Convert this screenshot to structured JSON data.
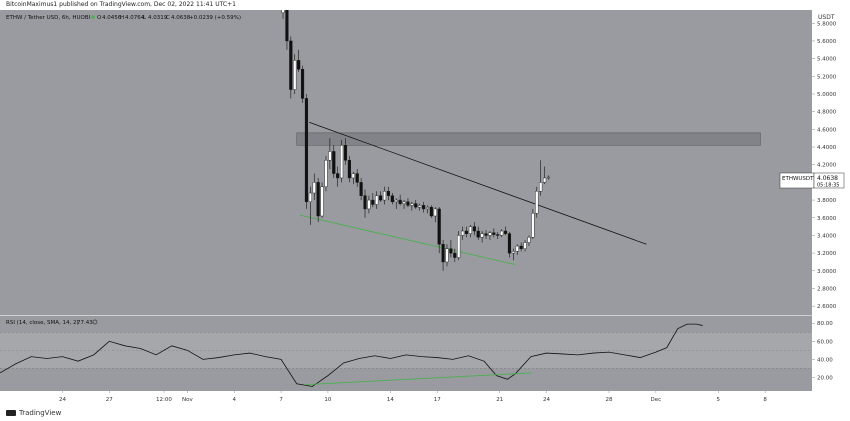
{
  "publisher": {
    "text": "BitcoinMaximus1 published on TradingView.com, Dec 02, 2022 11:41 UTC+1"
  },
  "footer": {
    "logo_text": "TradingView"
  },
  "colors": {
    "price_bg": "#9a9ba0",
    "rsi_bg": "#9a9ba0",
    "rsi_band": "#a6a7ab",
    "axis_bg": "#ffffff",
    "candle_up": "#ffffff",
    "candle_down": "#111111",
    "trendline": "#111111",
    "support_line": "#4caf50",
    "resistance_zone": "#7e7f84"
  },
  "chart_data": [
    {
      "type": "candlestick",
      "title": "ETHW / Tether USD, 6h, HUOBI",
      "ohlc": {
        "o_label": "O",
        "o": "4.0456",
        "h_label": "H",
        "h": "4.0764",
        "l_label": "L",
        "l": "4.0319",
        "c_label": "C",
        "c": "4.0638",
        "change": "+0.0239 (+0.59%)"
      },
      "currency": "USDT",
      "last_price": {
        "symbol": "ETHWUSDT",
        "value": "4.0638",
        "countdown": "05:18:35"
      },
      "y_ticks": [
        "5.8000",
        "5.6000",
        "5.4000",
        "5.2000",
        "5.0000",
        "4.8000",
        "4.6000",
        "4.4000",
        "4.2000",
        "4.0000",
        "3.8000",
        "3.6000",
        "3.4000",
        "3.2000",
        "3.0000",
        "2.8000",
        "2.6000"
      ],
      "ylim": [
        2.5,
        5.95
      ],
      "x_ticks": [
        {
          "label": "24",
          "day": 0
        },
        {
          "label": "27",
          "day": 3
        },
        {
          "label": "12:00",
          "day": 6.5
        },
        {
          "label": "Nov",
          "day": 8
        },
        {
          "label": "4",
          "day": 11
        },
        {
          "label": "7",
          "day": 14
        },
        {
          "label": "10",
          "day": 17
        },
        {
          "label": "14",
          "day": 21
        },
        {
          "label": "17",
          "day": 24
        },
        {
          "label": "21",
          "day": 28
        },
        {
          "label": "24",
          "day": 31
        },
        {
          "label": "28",
          "day": 35
        },
        {
          "label": "Dec",
          "day": 38
        },
        {
          "label": "5",
          "day": 42
        },
        {
          "label": "8",
          "day": 45
        }
      ],
      "xlim_days": [
        -4,
        48
      ],
      "resistance_zone": {
        "low": 4.42,
        "high": 4.56,
        "day_start": 15.0,
        "day_end": 44.7
      },
      "descending_trendline": [
        {
          "day": 15.8,
          "price": 4.68
        },
        {
          "day": 37.4,
          "price": 3.3
        }
      ],
      "support_line": [
        {
          "day": 15.2,
          "price": 3.63
        },
        {
          "day": 29.0,
          "price": 3.07
        }
      ],
      "series_start_day": 14.0,
      "candles_per_day": 4,
      "ohlc_series": [
        [
          5.92,
          6.05,
          5.85,
          5.98
        ],
        [
          5.98,
          6.02,
          5.5,
          5.6
        ],
        [
          5.6,
          5.65,
          4.95,
          5.05
        ],
        [
          5.05,
          5.45,
          5.0,
          5.38
        ],
        [
          5.38,
          5.5,
          5.25,
          5.28
        ],
        [
          5.28,
          5.32,
          4.9,
          4.95
        ],
        [
          4.95,
          5.0,
          3.7,
          3.78
        ],
        [
          3.78,
          3.95,
          3.52,
          3.88
        ],
        [
          3.88,
          4.1,
          3.8,
          4.0
        ],
        [
          4.0,
          4.05,
          3.55,
          3.62
        ],
        [
          3.62,
          4.0,
          3.6,
          3.95
        ],
        [
          3.95,
          4.3,
          3.9,
          4.25
        ],
        [
          4.25,
          4.5,
          4.15,
          4.35
        ],
        [
          4.35,
          4.42,
          4.05,
          4.1
        ],
        [
          4.1,
          4.18,
          3.95,
          4.05
        ],
        [
          4.05,
          4.48,
          4.0,
          4.42
        ],
        [
          4.42,
          4.5,
          4.2,
          4.25
        ],
        [
          4.25,
          4.3,
          4.0,
          4.05
        ],
        [
          4.05,
          4.12,
          3.98,
          4.1
        ],
        [
          4.1,
          4.15,
          3.95,
          4.0
        ],
        [
          4.0,
          4.05,
          3.8,
          3.85
        ],
        [
          3.85,
          3.92,
          3.6,
          3.7
        ],
        [
          3.7,
          3.85,
          3.65,
          3.8
        ],
        [
          3.8,
          3.88,
          3.72,
          3.75
        ],
        [
          3.75,
          3.9,
          3.7,
          3.85
        ],
        [
          3.85,
          3.9,
          3.78,
          3.8
        ],
        [
          3.8,
          3.95,
          3.75,
          3.9
        ],
        [
          3.9,
          3.95,
          3.8,
          3.85
        ],
        [
          3.85,
          3.88,
          3.75,
          3.78
        ],
        [
          3.78,
          3.82,
          3.7,
          3.8
        ],
        [
          3.8,
          3.86,
          3.74,
          3.76
        ],
        [
          3.76,
          3.8,
          3.7,
          3.78
        ],
        [
          3.78,
          3.82,
          3.72,
          3.74
        ],
        [
          3.74,
          3.78,
          3.68,
          3.76
        ],
        [
          3.76,
          3.8,
          3.7,
          3.72
        ],
        [
          3.72,
          3.76,
          3.68,
          3.74
        ],
        [
          3.74,
          3.78,
          3.66,
          3.7
        ],
        [
          3.7,
          3.74,
          3.65,
          3.72
        ],
        [
          3.72,
          3.74,
          3.6,
          3.62
        ],
        [
          3.62,
          3.72,
          3.55,
          3.7
        ],
        [
          3.7,
          3.72,
          3.2,
          3.3
        ],
        [
          3.3,
          3.35,
          3.0,
          3.1
        ],
        [
          3.1,
          3.3,
          3.05,
          3.25
        ],
        [
          3.25,
          3.35,
          3.15,
          3.2
        ],
        [
          3.2,
          3.25,
          3.1,
          3.15
        ],
        [
          3.15,
          3.45,
          3.12,
          3.4
        ],
        [
          3.4,
          3.5,
          3.35,
          3.45
        ],
        [
          3.45,
          3.5,
          3.38,
          3.42
        ],
        [
          3.42,
          3.52,
          3.38,
          3.5
        ],
        [
          3.5,
          3.55,
          3.4,
          3.45
        ],
        [
          3.45,
          3.5,
          3.35,
          3.38
        ],
        [
          3.38,
          3.45,
          3.32,
          3.42
        ],
        [
          3.42,
          3.46,
          3.36,
          3.4
        ],
        [
          3.4,
          3.45,
          3.35,
          3.43
        ],
        [
          3.43,
          3.48,
          3.38,
          3.41
        ],
        [
          3.41,
          3.44,
          3.36,
          3.4
        ],
        [
          3.4,
          3.47,
          3.38,
          3.45
        ],
        [
          3.45,
          3.5,
          3.4,
          3.42
        ],
        [
          3.42,
          3.44,
          3.15,
          3.2
        ],
        [
          3.2,
          3.25,
          3.12,
          3.22
        ],
        [
          3.22,
          3.3,
          3.18,
          3.28
        ],
        [
          3.28,
          3.32,
          3.22,
          3.25
        ],
        [
          3.25,
          3.35,
          3.22,
          3.32
        ],
        [
          3.32,
          3.4,
          3.28,
          3.38
        ],
        [
          3.38,
          3.7,
          3.36,
          3.65
        ],
        [
          3.65,
          3.95,
          3.6,
          3.9
        ],
        [
          3.9,
          4.25,
          3.85,
          4.0
        ],
        [
          4.0,
          4.18,
          3.98,
          4.05
        ],
        [
          4.05,
          4.08,
          4.03,
          4.06
        ]
      ]
    },
    {
      "type": "line",
      "title": "RSI (14, close, SMA, 14, 2)",
      "value_label": "77.43",
      "y_ticks": [
        "80.00",
        "60.00",
        "40.00",
        "20.00"
      ],
      "ylim": [
        5,
        88
      ],
      "band": [
        30,
        70
      ],
      "midline": 50,
      "series": [
        {
          "values": [
            [
              -4,
              25
            ],
            [
              -3,
              35
            ],
            [
              -2,
              43
            ],
            [
              -1,
              41
            ],
            [
              0,
              43
            ],
            [
              1,
              38
            ],
            [
              2,
              45
            ],
            [
              3,
              60
            ],
            [
              4,
              55
            ],
            [
              5,
              52
            ],
            [
              6,
              45
            ],
            [
              7,
              55
            ],
            [
              8,
              50
            ],
            [
              9,
              40
            ],
            [
              10,
              42
            ],
            [
              11,
              45
            ],
            [
              12,
              47
            ],
            [
              13,
              43
            ],
            [
              14,
              40
            ],
            [
              15,
              13
            ],
            [
              16,
              10
            ],
            [
              17,
              22
            ],
            [
              18,
              36
            ],
            [
              19,
              41
            ],
            [
              20,
              44
            ],
            [
              21,
              41
            ],
            [
              22,
              45
            ],
            [
              23,
              43
            ],
            [
              24,
              42
            ],
            [
              25,
              40
            ],
            [
              26,
              44
            ],
            [
              27,
              38
            ],
            [
              27.8,
              22
            ],
            [
              28.5,
              18
            ],
            [
              29,
              24
            ],
            [
              30,
              43
            ],
            [
              31,
              47
            ],
            [
              32,
              46
            ],
            [
              33,
              45
            ],
            [
              34,
              47
            ],
            [
              35,
              48
            ],
            [
              36,
              45
            ],
            [
              37,
              42
            ],
            [
              38,
              48
            ],
            [
              38.7,
              53
            ],
            [
              39.4,
              74
            ],
            [
              40,
              79
            ],
            [
              40.6,
              79
            ],
            [
              41,
              77.43
            ]
          ]
        }
      ],
      "support_line": [
        {
          "day": 15.5,
          "value": 12
        },
        {
          "day": 30.0,
          "value": 25
        }
      ]
    }
  ]
}
